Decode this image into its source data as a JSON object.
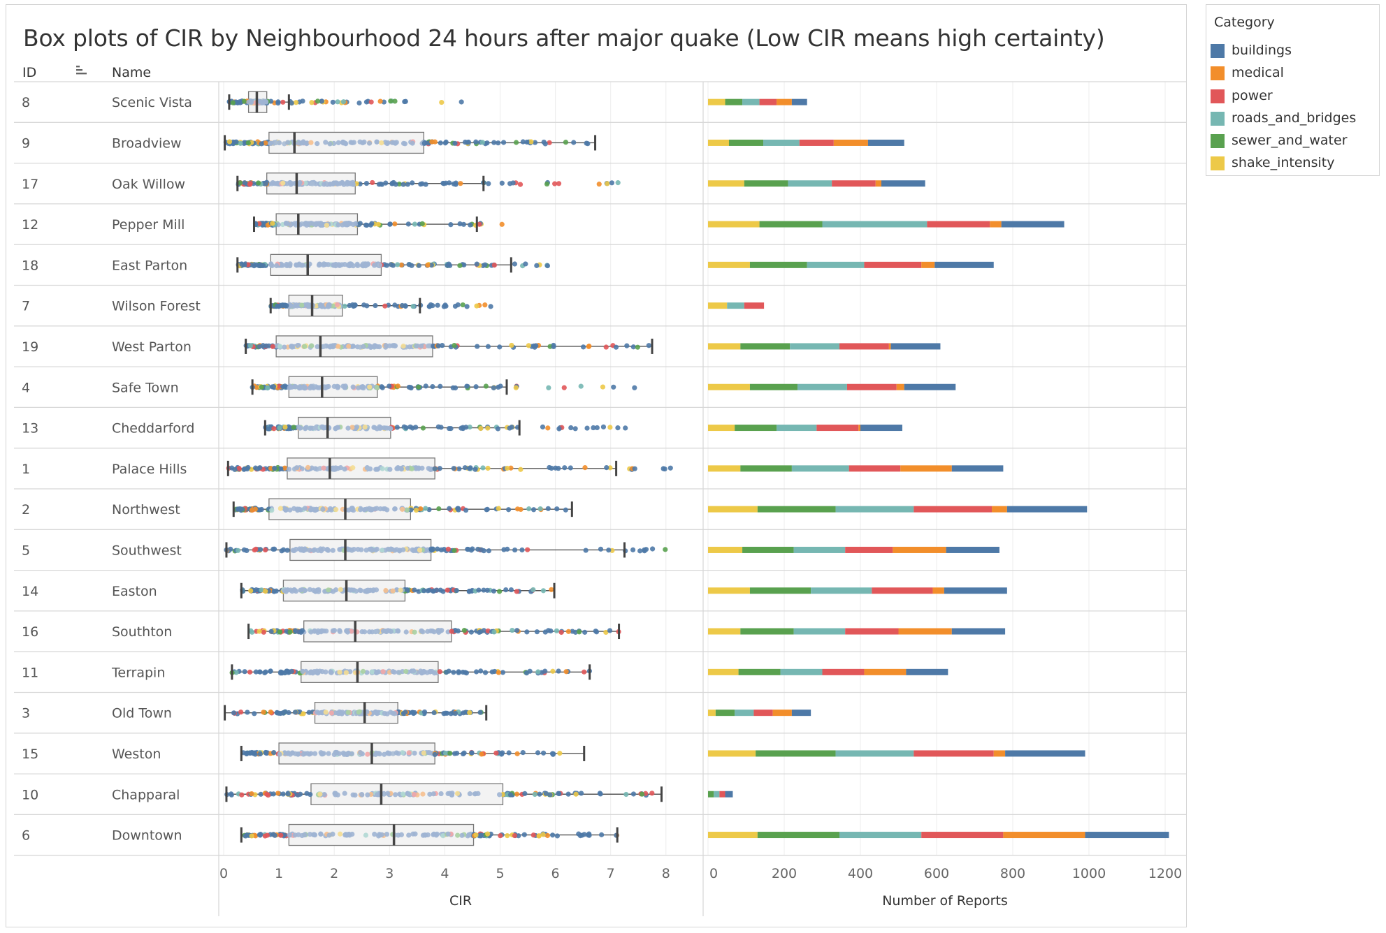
{
  "chart_data": [
    {
      "type": "box",
      "title": "Box plots of CIR by Neighbourhood 24 hours after major quake (Low CIR means high certainty)",
      "xlabel": "CIR",
      "xlim": [
        0,
        8.5
      ],
      "xticks": [
        "0",
        "1",
        "2",
        "3",
        "4",
        "5",
        "6",
        "7",
        "8"
      ],
      "columns": {
        "id": "ID",
        "name": "Name"
      },
      "rows": [
        {
          "id": "8",
          "name": "Scenic Vista",
          "whisker_low": 0.1,
          "q1": 0.45,
          "median": 0.6,
          "q3": 0.78,
          "whisker_high": 1.18,
          "outlier_max": 4.35
        },
        {
          "id": "9",
          "name": "Broadview",
          "whisker_low": 0.02,
          "q1": 0.82,
          "median": 1.28,
          "q3": 3.62,
          "whisker_high": 6.72,
          "outlier_max": 6.72
        },
        {
          "id": "17",
          "name": "Oak Willow",
          "whisker_low": 0.25,
          "q1": 0.78,
          "median": 1.32,
          "q3": 2.38,
          "whisker_high": 4.7,
          "outlier_max": 7.25
        },
        {
          "id": "12",
          "name": "Pepper Mill",
          "whisker_low": 0.55,
          "q1": 0.95,
          "median": 1.35,
          "q3": 2.42,
          "whisker_high": 4.58,
          "outlier_max": 5.3
        },
        {
          "id": "18",
          "name": "East Parton",
          "whisker_low": 0.25,
          "q1": 0.85,
          "median": 1.52,
          "q3": 2.85,
          "whisker_high": 5.2,
          "outlier_max": 6.0
        },
        {
          "id": "7",
          "name": "Wilson Forest",
          "whisker_low": 0.85,
          "q1": 1.18,
          "median": 1.6,
          "q3": 2.15,
          "whisker_high": 3.55,
          "outlier_max": 4.9
        },
        {
          "id": "19",
          "name": "West Parton",
          "whisker_low": 0.4,
          "q1": 0.95,
          "median": 1.75,
          "q3": 3.78,
          "whisker_high": 7.75,
          "outlier_max": 7.75
        },
        {
          "id": "4",
          "name": "Safe Town",
          "whisker_low": 0.52,
          "q1": 1.18,
          "median": 1.78,
          "q3": 2.78,
          "whisker_high": 5.12,
          "outlier_max": 7.5
        },
        {
          "id": "13",
          "name": "Cheddarford",
          "whisker_low": 0.75,
          "q1": 1.35,
          "median": 1.88,
          "q3": 3.02,
          "whisker_high": 5.35,
          "outlier_max": 7.3
        },
        {
          "id": "1",
          "name": "Palace Hills",
          "whisker_low": 0.08,
          "q1": 1.15,
          "median": 1.92,
          "q3": 3.82,
          "whisker_high": 7.1,
          "outlier_max": 8.25
        },
        {
          "id": "2",
          "name": "Northwest",
          "whisker_low": 0.18,
          "q1": 0.82,
          "median": 2.2,
          "q3": 3.38,
          "whisker_high": 6.3,
          "outlier_max": 6.3
        },
        {
          "id": "5",
          "name": "Southwest",
          "whisker_low": 0.05,
          "q1": 1.2,
          "median": 2.2,
          "q3": 3.75,
          "whisker_high": 7.25,
          "outlier_max": 8.0
        },
        {
          "id": "14",
          "name": "Easton",
          "whisker_low": 0.32,
          "q1": 1.08,
          "median": 2.22,
          "q3": 3.28,
          "whisker_high": 5.98,
          "outlier_max": 5.98
        },
        {
          "id": "16",
          "name": "Southton",
          "whisker_low": 0.45,
          "q1": 1.45,
          "median": 2.38,
          "q3": 4.12,
          "whisker_high": 7.15,
          "outlier_max": 7.15
        },
        {
          "id": "11",
          "name": "Terrapin",
          "whisker_low": 0.15,
          "q1": 1.4,
          "median": 2.42,
          "q3": 3.88,
          "whisker_high": 6.62,
          "outlier_max": 6.62
        },
        {
          "id": "3",
          "name": "Old Town",
          "whisker_low": 0.02,
          "q1": 1.65,
          "median": 2.55,
          "q3": 3.15,
          "whisker_high": 4.75,
          "outlier_max": 4.75
        },
        {
          "id": "15",
          "name": "Weston",
          "whisker_low": 0.32,
          "q1": 1.0,
          "median": 2.68,
          "q3": 3.82,
          "whisker_high": 6.52,
          "outlier_max": 6.52
        },
        {
          "id": "10",
          "name": "Chapparal",
          "whisker_low": 0.05,
          "q1": 1.58,
          "median": 2.85,
          "q3": 5.05,
          "whisker_high": 7.92,
          "outlier_max": 7.92
        },
        {
          "id": "6",
          "name": "Downtown",
          "whisker_low": 0.32,
          "q1": 1.18,
          "median": 3.08,
          "q3": 4.52,
          "whisker_high": 7.12,
          "outlier_max": 7.12
        }
      ]
    },
    {
      "type": "bar",
      "stacked": true,
      "orientation": "horizontal",
      "xlabel": "Number of Reports",
      "xlim": [
        0,
        1230
      ],
      "xticks": [
        "0",
        "200",
        "400",
        "600",
        "800",
        "1000",
        "1200"
      ],
      "legend_title": "Category",
      "legend_position": "top-right",
      "series_order": [
        "shake_intensity",
        "sewer_and_water",
        "roads_and_bridges",
        "power",
        "medical",
        "buildings"
      ],
      "colors": {
        "buildings": "#4e79a7",
        "medical": "#f28e2b",
        "power": "#e15759",
        "roads_and_bridges": "#76b7b2",
        "sewer_and_water": "#59a14f",
        "shake_intensity": "#edc948"
      },
      "legend_order": [
        "buildings",
        "medical",
        "power",
        "roads_and_bridges",
        "sewer_and_water",
        "shake_intensity"
      ],
      "rows": [
        {
          "name": "Scenic Vista",
          "shake_intensity": 45,
          "sewer_and_water": 45,
          "roads_and_bridges": 45,
          "power": 45,
          "medical": 40,
          "buildings": 40
        },
        {
          "name": "Broadview",
          "shake_intensity": 55,
          "sewer_and_water": 90,
          "roads_and_bridges": 95,
          "power": 90,
          "medical": 90,
          "buildings": 95
        },
        {
          "name": "Oak Willow",
          "shake_intensity": 95,
          "sewer_and_water": 115,
          "roads_and_bridges": 115,
          "power": 115,
          "medical": 15,
          "buildings": 115
        },
        {
          "name": "Pepper Mill",
          "shake_intensity": 135,
          "sewer_and_water": 165,
          "roads_and_bridges": 275,
          "power": 165,
          "medical": 30,
          "buildings": 165
        },
        {
          "name": "East Parton",
          "shake_intensity": 110,
          "sewer_and_water": 150,
          "roads_and_bridges": 150,
          "power": 150,
          "medical": 35,
          "buildings": 155
        },
        {
          "name": "Wilson Forest",
          "shake_intensity": 50,
          "sewer_and_water": 0,
          "roads_and_bridges": 45,
          "power": 52,
          "medical": 0,
          "buildings": 0
        },
        {
          "name": "West Parton",
          "shake_intensity": 85,
          "sewer_and_water": 130,
          "roads_and_bridges": 130,
          "power": 130,
          "medical": 5,
          "buildings": 130
        },
        {
          "name": "Safe Town",
          "shake_intensity": 110,
          "sewer_and_water": 125,
          "roads_and_bridges": 130,
          "power": 130,
          "medical": 20,
          "buildings": 135
        },
        {
          "name": "Cheddarford",
          "shake_intensity": 70,
          "sewer_and_water": 110,
          "roads_and_bridges": 105,
          "power": 110,
          "medical": 5,
          "buildings": 110
        },
        {
          "name": "Palace Hills",
          "shake_intensity": 85,
          "sewer_and_water": 135,
          "roads_and_bridges": 150,
          "power": 135,
          "medical": 135,
          "buildings": 135
        },
        {
          "name": "Northwest",
          "shake_intensity": 130,
          "sewer_and_water": 205,
          "roads_and_bridges": 205,
          "power": 205,
          "medical": 40,
          "buildings": 210
        },
        {
          "name": "Southwest",
          "shake_intensity": 90,
          "sewer_and_water": 135,
          "roads_and_bridges": 135,
          "power": 125,
          "medical": 140,
          "buildings": 140
        },
        {
          "name": "Easton",
          "shake_intensity": 110,
          "sewer_and_water": 160,
          "roads_and_bridges": 160,
          "power": 160,
          "medical": 30,
          "buildings": 165
        },
        {
          "name": "Southton",
          "shake_intensity": 85,
          "sewer_and_water": 140,
          "roads_and_bridges": 135,
          "power": 140,
          "medical": 140,
          "buildings": 140
        },
        {
          "name": "Terrapin",
          "shake_intensity": 80,
          "sewer_and_water": 110,
          "roads_and_bridges": 110,
          "power": 110,
          "medical": 110,
          "buildings": 110
        },
        {
          "name": "Old Town",
          "shake_intensity": 20,
          "sewer_and_water": 50,
          "roads_and_bridges": 50,
          "power": 50,
          "medical": 50,
          "buildings": 50
        },
        {
          "name": "Weston",
          "shake_intensity": 125,
          "sewer_and_water": 210,
          "roads_and_bridges": 205,
          "power": 210,
          "medical": 30,
          "buildings": 210
        },
        {
          "name": "Chapparal",
          "shake_intensity": 0,
          "sewer_and_water": 15,
          "roads_and_bridges": 15,
          "power": 15,
          "medical": 0,
          "buildings": 20
        },
        {
          "name": "Downtown",
          "shake_intensity": 130,
          "sewer_and_water": 215,
          "roads_and_bridges": 215,
          "power": 215,
          "medical": 215,
          "buildings": 220
        }
      ]
    }
  ],
  "legend": {
    "title": "Category",
    "items": [
      {
        "label": "buildings",
        "color": "#4e79a7"
      },
      {
        "label": "medical",
        "color": "#f28e2b"
      },
      {
        "label": "power",
        "color": "#e15759"
      },
      {
        "label": "roads_and_bridges",
        "color": "#76b7b2"
      },
      {
        "label": "sewer_and_water",
        "color": "#59a14f"
      },
      {
        "label": "shake_intensity",
        "color": "#edc948"
      }
    ]
  },
  "sort_icon": "sort-descending-icon"
}
